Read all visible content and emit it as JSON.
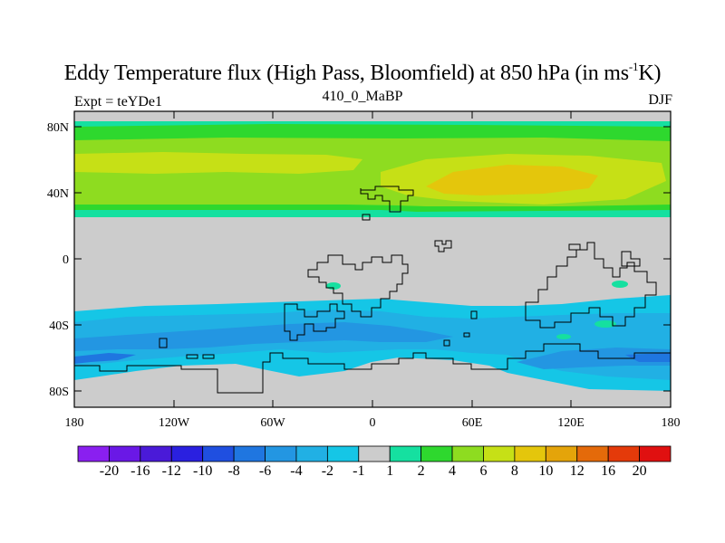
{
  "title": {
    "main_prefix": "Eddy Temperature flux (High Pass, Bloomfield) at 850 hPa (in ms",
    "superscript": "-1",
    "main_suffix": "K)",
    "expt": "Expt = teYDe1",
    "run": "410_0_MaBP",
    "season": "DJF"
  },
  "map_data": {
    "type": "filled-contour map",
    "projection": "cylindrical equidistant",
    "lon_range": [
      -180,
      180
    ],
    "lat_range": [
      -90,
      90
    ],
    "y_ticks": [
      "80N",
      "40N",
      "0",
      "40S",
      "80S"
    ],
    "x_ticks": [
      "180",
      "120W",
      "60W",
      "0",
      "60E",
      "120E",
      "180"
    ],
    "colorbar": {
      "labels": [
        "-20",
        "-16",
        "-12",
        "-10",
        "-8",
        "-6",
        "-4",
        "-2",
        "-1",
        "1",
        "2",
        "4",
        "6",
        "8",
        "10",
        "12",
        "16",
        "20"
      ],
      "colors": [
        "#8a1ff0",
        "#6a18e6",
        "#4a1ad8",
        "#2a20e0",
        "#1f4fe0",
        "#1f76e0",
        "#2396e2",
        "#21b0e4",
        "#15c6e6",
        "#cccccc",
        "#15e0a0",
        "#2ed82e",
        "#8edc20",
        "#c6e016",
        "#e4c60c",
        "#e4a40a",
        "#e46a0a",
        "#e43a0a",
        "#e01010"
      ]
    }
  }
}
